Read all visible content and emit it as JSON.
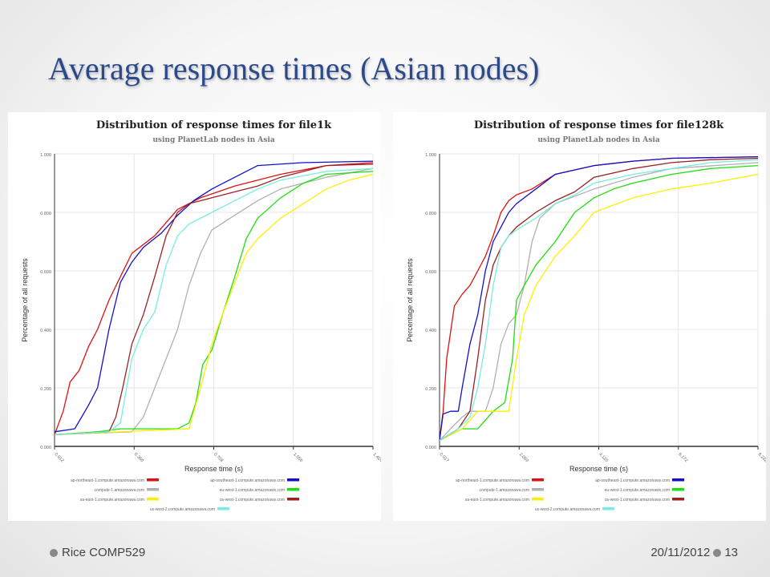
{
  "slide": {
    "title": "Average response times (Asian nodes)",
    "footer_left": "Rice COMP529",
    "footer_date": "20/11/2012",
    "page_number": "13"
  },
  "legend_colors": {
    "ap-northeast-1.compute.amazonaws.com": "#dd1111",
    "ap-southeast-1.compute.amazonaws.com": "#1111cc",
    "compute-1.amazonaws.com": "#b0b0b0",
    "eu-west-1.compute.amazonaws.com": "#22dd11",
    "sa-east-1.compute.amazonaws.com": "#ffee00",
    "us-west-1.compute.amazonaws.com": "#9a2222",
    "us-west-2.compute.amazonaws.com": "#77eedd"
  },
  "chart_data": [
    {
      "type": "line",
      "title": "Distribution of response times for file1k",
      "subtitle": "using PlanetLab nodes in Asia",
      "xlabel": "Response time (s)",
      "ylabel": "Percentage of all requests",
      "xlim": [
        0.012,
        1.404
      ],
      "ylim": [
        0,
        1
      ],
      "xticks": [
        "0.012",
        "0.360",
        "0.708",
        "1.056",
        "1.404"
      ],
      "yticks": [
        "0.000",
        "0.200",
        "0.400",
        "0.600",
        "0.800",
        "1.000"
      ],
      "grid": true,
      "legend_position": "bottom",
      "series": [
        {
          "name": "ap-northeast-1.compute.amazonaws.com",
          "x": [
            0.012,
            0.05,
            0.08,
            0.12,
            0.16,
            0.2,
            0.25,
            0.3,
            0.35,
            0.45,
            0.55,
            0.65,
            0.8,
            1.0,
            1.2,
            1.404
          ],
          "y": [
            0.04,
            0.12,
            0.22,
            0.26,
            0.34,
            0.4,
            0.5,
            0.58,
            0.66,
            0.72,
            0.81,
            0.85,
            0.89,
            0.93,
            0.96,
            0.97
          ]
        },
        {
          "name": "ap-southeast-1.compute.amazonaws.com",
          "x": [
            0.012,
            0.1,
            0.13,
            0.16,
            0.2,
            0.25,
            0.3,
            0.35,
            0.4,
            0.48,
            0.55,
            0.62,
            0.7,
            0.8,
            0.9,
            1.1,
            1.404
          ],
          "y": [
            0.05,
            0.06,
            0.1,
            0.14,
            0.2,
            0.4,
            0.56,
            0.63,
            0.68,
            0.73,
            0.79,
            0.84,
            0.88,
            0.92,
            0.96,
            0.97,
            0.975
          ]
        },
        {
          "name": "compute-1.amazonaws.com",
          "x": [
            0.012,
            0.35,
            0.4,
            0.45,
            0.5,
            0.55,
            0.6,
            0.65,
            0.7,
            0.8,
            0.9,
            1.0,
            1.2,
            1.404
          ],
          "y": [
            0.04,
            0.05,
            0.1,
            0.2,
            0.3,
            0.4,
            0.55,
            0.66,
            0.74,
            0.79,
            0.84,
            0.88,
            0.92,
            0.95
          ]
        },
        {
          "name": "eu-west-1.compute.amazonaws.com",
          "x": [
            0.012,
            0.2,
            0.3,
            0.55,
            0.6,
            0.63,
            0.66,
            0.7,
            0.75,
            0.8,
            0.85,
            0.9,
            1.0,
            1.1,
            1.2,
            1.404
          ],
          "y": [
            0.04,
            0.05,
            0.06,
            0.06,
            0.08,
            0.15,
            0.28,
            0.33,
            0.46,
            0.58,
            0.71,
            0.78,
            0.85,
            0.9,
            0.93,
            0.94
          ]
        },
        {
          "name": "sa-east-1.compute.amazonaws.com",
          "x": [
            0.012,
            0.3,
            0.6,
            0.65,
            0.7,
            0.75,
            0.8,
            0.85,
            0.9,
            1.0,
            1.1,
            1.2,
            1.3,
            1.404
          ],
          "y": [
            0.04,
            0.05,
            0.06,
            0.2,
            0.35,
            0.46,
            0.56,
            0.66,
            0.71,
            0.78,
            0.83,
            0.88,
            0.91,
            0.93
          ]
        },
        {
          "name": "us-west-1.compute.amazonaws.com",
          "x": [
            0.012,
            0.25,
            0.28,
            0.31,
            0.35,
            0.4,
            0.45,
            0.5,
            0.55,
            0.6,
            0.7,
            0.8,
            0.9,
            1.0,
            1.2,
            1.404
          ],
          "y": [
            0.04,
            0.05,
            0.1,
            0.2,
            0.35,
            0.45,
            0.58,
            0.72,
            0.8,
            0.83,
            0.85,
            0.87,
            0.89,
            0.92,
            0.96,
            0.965
          ]
        },
        {
          "name": "us-west-2.compute.amazonaws.com",
          "x": [
            0.012,
            0.25,
            0.3,
            0.35,
            0.4,
            0.45,
            0.5,
            0.55,
            0.6,
            0.7,
            0.8,
            0.9,
            1.0,
            1.2,
            1.404
          ],
          "y": [
            0.04,
            0.05,
            0.08,
            0.3,
            0.4,
            0.46,
            0.62,
            0.72,
            0.76,
            0.8,
            0.84,
            0.88,
            0.91,
            0.94,
            0.95
          ]
        }
      ]
    },
    {
      "type": "line",
      "title": "Distribution of response times for file128k",
      "subtitle": "using PlanetLab nodes in Asia",
      "xlabel": "Response time (s)",
      "ylabel": "Percentage of all requests",
      "xlim": [
        0.017,
        8.222
      ],
      "ylim": [
        0,
        1
      ],
      "xticks": [
        "0.017",
        "2.069",
        "4.120",
        "6.172",
        "8.222"
      ],
      "yticks": [
        "0.000",
        "0.200",
        "0.400",
        "0.600",
        "0.800",
        "1.000"
      ],
      "grid": true,
      "legend_position": "bottom",
      "series": [
        {
          "name": "ap-northeast-1.compute.amazonaws.com",
          "x": [
            0.017,
            0.1,
            0.2,
            0.4,
            0.6,
            0.8,
            1.0,
            1.2,
            1.4,
            1.6,
            1.8,
            2.0,
            2.4,
            3.0,
            4.0,
            5.0,
            6.0,
            8.222
          ],
          "y": [
            0.02,
            0.1,
            0.3,
            0.48,
            0.52,
            0.55,
            0.6,
            0.65,
            0.72,
            0.8,
            0.84,
            0.86,
            0.88,
            0.93,
            0.96,
            0.975,
            0.985,
            0.99
          ]
        },
        {
          "name": "ap-southeast-1.compute.amazonaws.com",
          "x": [
            0.017,
            0.1,
            0.3,
            0.5,
            0.6,
            0.8,
            1.0,
            1.2,
            1.4,
            1.6,
            1.8,
            2.0,
            2.5,
            3.0,
            4.0,
            5.0,
            6.0,
            8.222
          ],
          "y": [
            0.02,
            0.11,
            0.12,
            0.12,
            0.2,
            0.35,
            0.45,
            0.6,
            0.7,
            0.75,
            0.8,
            0.83,
            0.88,
            0.93,
            0.96,
            0.975,
            0.985,
            0.99
          ]
        },
        {
          "name": "compute-1.amazonaws.com",
          "x": [
            0.017,
            0.3,
            0.6,
            0.8,
            1.0,
            1.2,
            1.4,
            1.6,
            1.8,
            2.0,
            2.2,
            2.4,
            2.6,
            3.0,
            4.0,
            5.0,
            6.0,
            8.222
          ],
          "y": [
            0.02,
            0.06,
            0.1,
            0.12,
            0.12,
            0.12,
            0.2,
            0.35,
            0.42,
            0.45,
            0.55,
            0.7,
            0.78,
            0.83,
            0.88,
            0.92,
            0.95,
            0.97
          ]
        },
        {
          "name": "eu-west-1.compute.amazonaws.com",
          "x": [
            0.017,
            0.6,
            1.0,
            1.4,
            1.7,
            1.9,
            2.0,
            2.2,
            2.5,
            3.0,
            3.5,
            4.0,
            4.5,
            5.0,
            6.0,
            7.0,
            8.222
          ],
          "y": [
            0.02,
            0.06,
            0.06,
            0.12,
            0.15,
            0.3,
            0.5,
            0.55,
            0.62,
            0.7,
            0.8,
            0.85,
            0.88,
            0.9,
            0.93,
            0.95,
            0.96
          ]
        },
        {
          "name": "sa-east-1.compute.amazonaws.com",
          "x": [
            0.017,
            0.6,
            1.0,
            1.5,
            1.8,
            2.0,
            2.2,
            2.5,
            3.0,
            3.5,
            4.0,
            5.0,
            6.0,
            7.0,
            8.222
          ],
          "y": [
            0.02,
            0.06,
            0.12,
            0.12,
            0.12,
            0.3,
            0.45,
            0.55,
            0.65,
            0.72,
            0.8,
            0.85,
            0.88,
            0.9,
            0.93
          ]
        },
        {
          "name": "us-west-1.compute.amazonaws.com",
          "x": [
            0.017,
            0.5,
            0.8,
            1.0,
            1.2,
            1.4,
            1.6,
            1.8,
            2.0,
            2.5,
            3.0,
            3.5,
            4.0,
            5.0,
            6.0,
            7.0,
            8.222
          ],
          "y": [
            0.02,
            0.06,
            0.12,
            0.3,
            0.5,
            0.62,
            0.68,
            0.72,
            0.75,
            0.8,
            0.84,
            0.87,
            0.92,
            0.95,
            0.97,
            0.98,
            0.985
          ]
        },
        {
          "name": "us-west-2.compute.amazonaws.com",
          "x": [
            0.017,
            0.5,
            0.8,
            1.0,
            1.2,
            1.4,
            1.6,
            1.8,
            2.0,
            2.5,
            3.0,
            3.5,
            4.0,
            5.0,
            6.0,
            7.0,
            8.222
          ],
          "y": [
            0.02,
            0.06,
            0.1,
            0.2,
            0.35,
            0.55,
            0.68,
            0.72,
            0.74,
            0.78,
            0.83,
            0.86,
            0.9,
            0.93,
            0.95,
            0.97,
            0.98
          ]
        }
      ]
    }
  ]
}
